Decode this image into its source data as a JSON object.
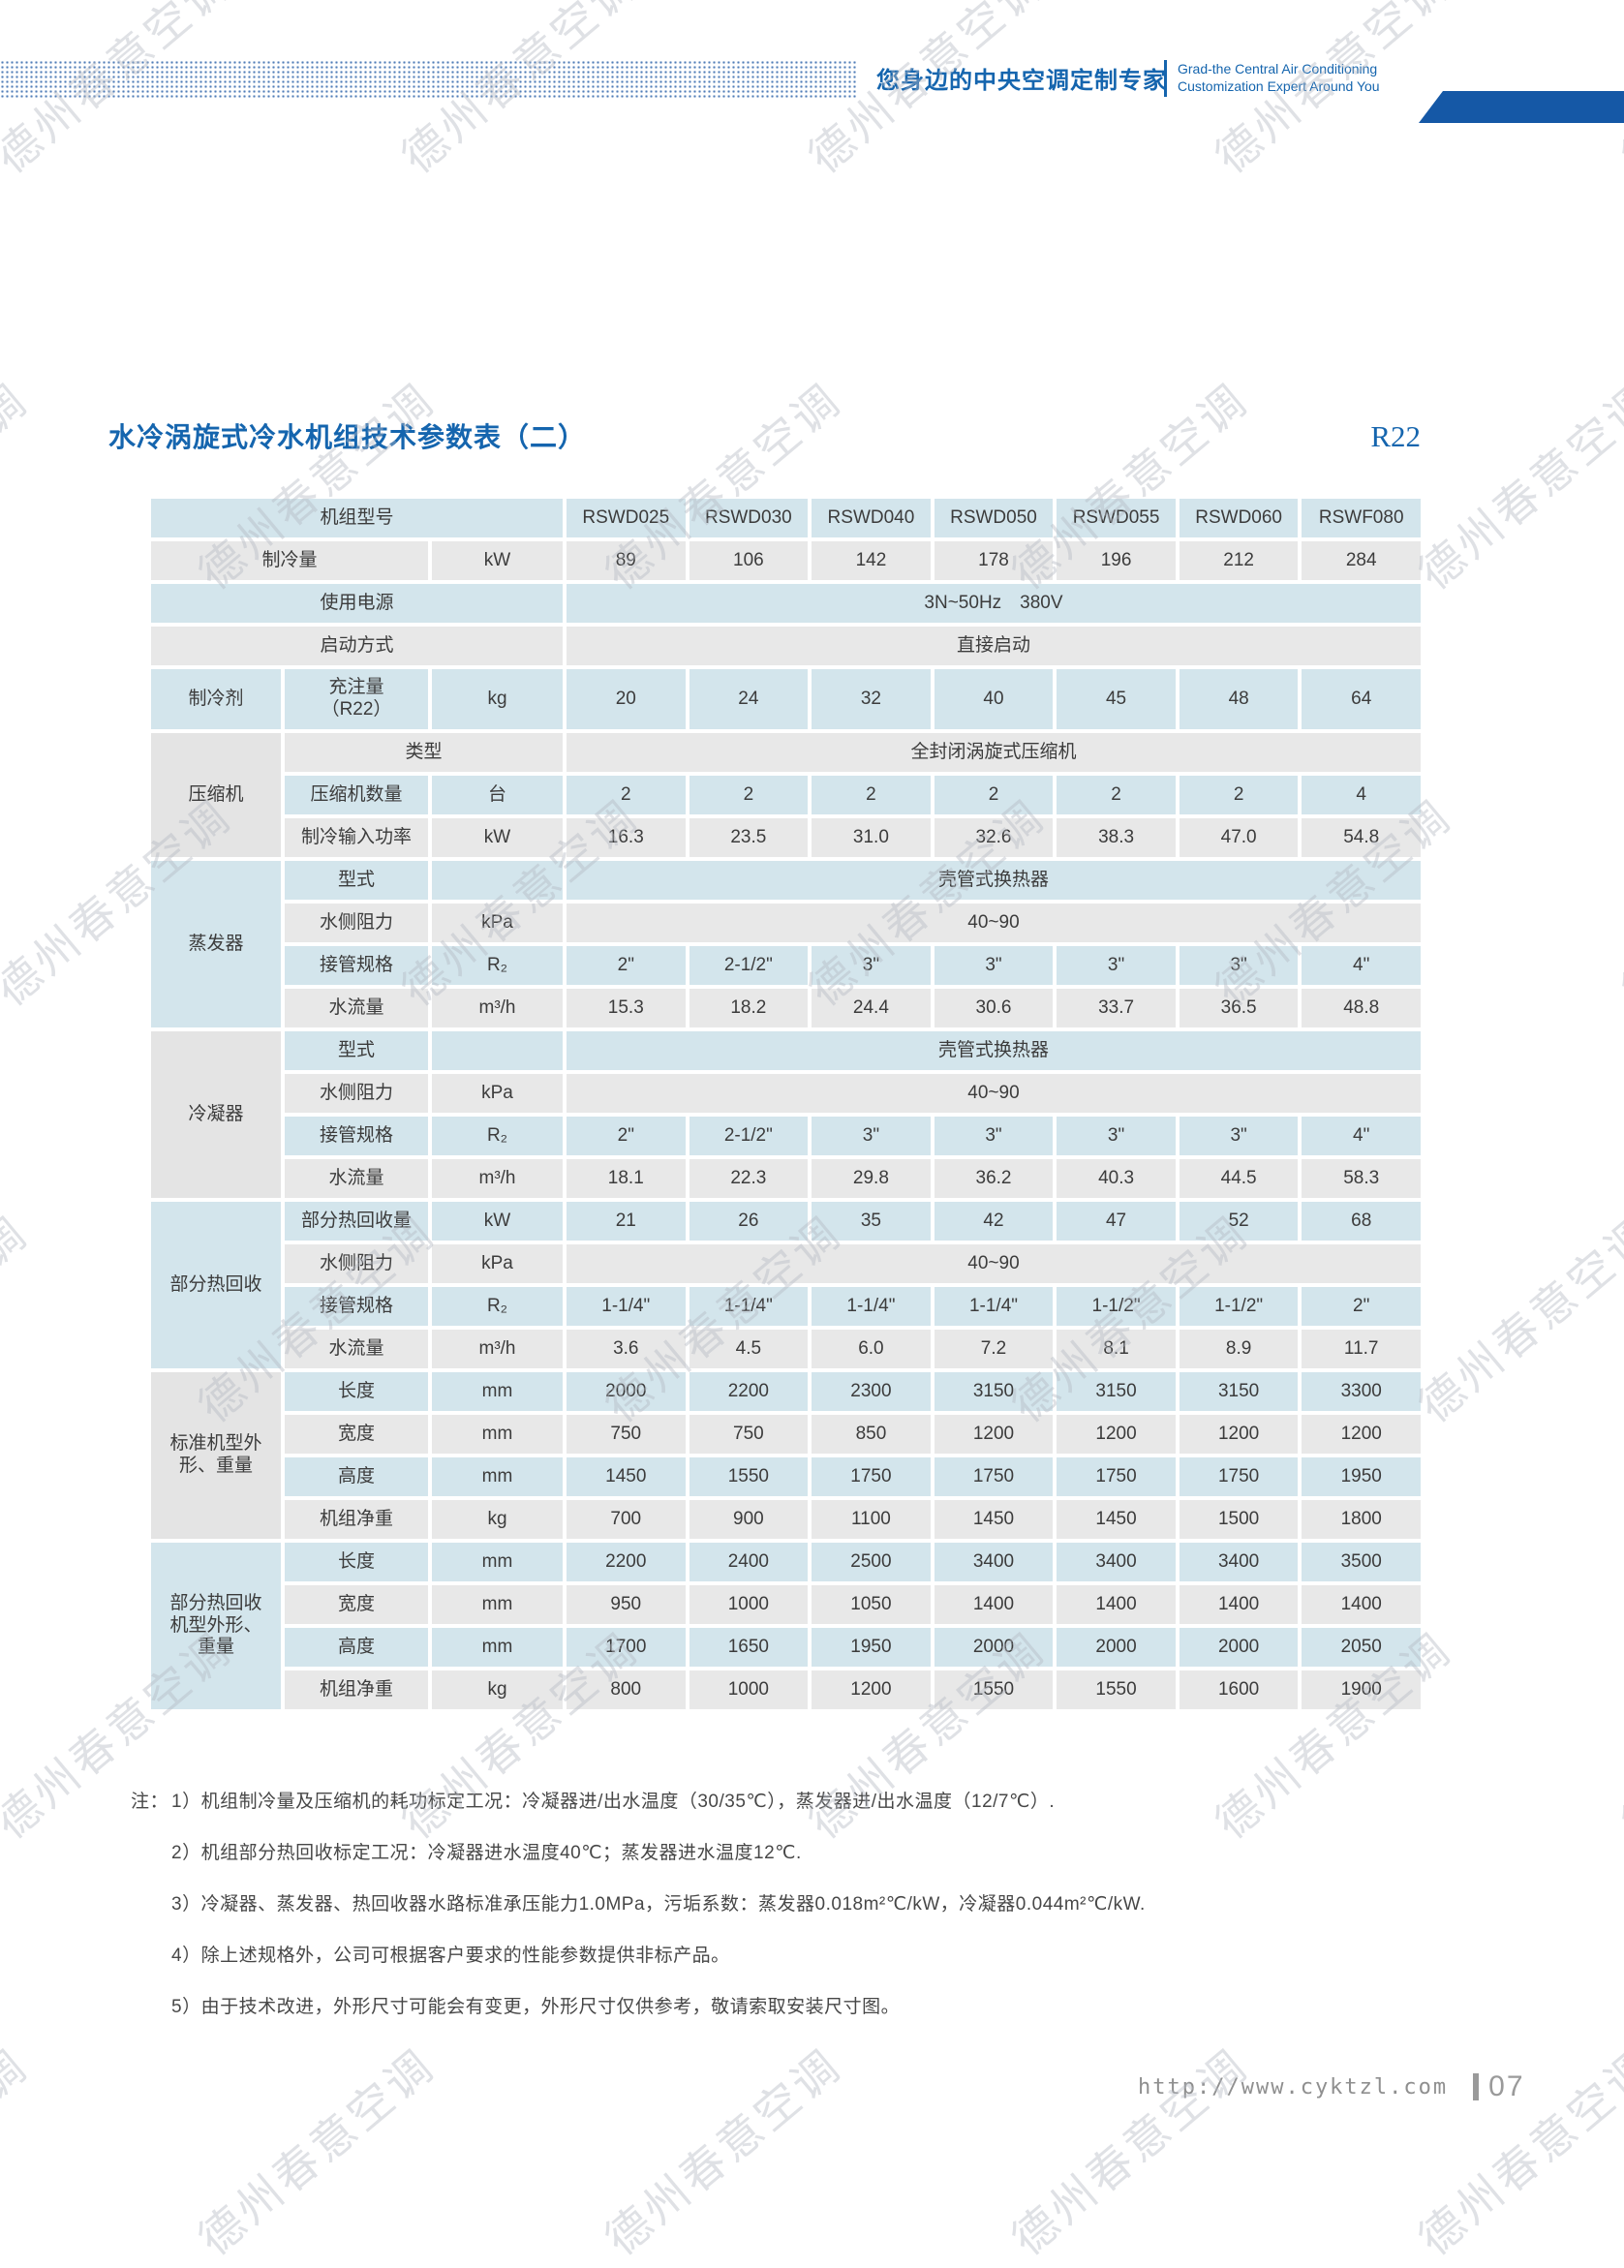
{
  "header": {
    "slogan_cn": "您身边的中央空调定制专家",
    "slogan_en": [
      "Grad-the Central Air Conditioning",
      "Customization Expert Around You"
    ]
  },
  "title": {
    "text": "水冷涡旋式冷水机组技术参数表（二）",
    "badge": "R22"
  },
  "watermark": {
    "text": "德州春意空调"
  },
  "colors": {
    "accent_blue": "#1565ae",
    "band_blue": "#1558a6",
    "row_blue": "#d3e5ec",
    "row_gray": "#e8e8e8",
    "group_gray": "#e4e4e4"
  },
  "table": {
    "rows": [
      {
        "bg": "b",
        "label": "机组型号",
        "labelSpan": "ABC",
        "values": [
          "RSWD025",
          "RSWD030",
          "RSWD040",
          "RSWD050",
          "RSWD055",
          "RSWD060",
          "RSWF080"
        ]
      },
      {
        "bg": "g",
        "label": "制冷量",
        "labelSpan": "AB",
        "unit": "kW",
        "values": [
          "89",
          "106",
          "142",
          "178",
          "196",
          "212",
          "284"
        ]
      },
      {
        "bg": "b",
        "label": "使用电源",
        "labelSpan": "ABC",
        "valueSpan": "3N~50Hz　380V"
      },
      {
        "bg": "g",
        "label": "启动方式",
        "labelSpan": "ABC",
        "valueSpan": "直接启动"
      },
      {
        "bg": "b",
        "tall": true,
        "group": {
          "text": "制冷剂",
          "span": 1,
          "bg": "b"
        },
        "label": "充注量\n（R22）",
        "unit": "kg",
        "values": [
          "20",
          "24",
          "32",
          "40",
          "45",
          "48",
          "64"
        ]
      },
      {
        "bg": "g",
        "group": {
          "text": "压缩机",
          "span": 3,
          "bg": "g"
        },
        "label": "类型",
        "labelSpan": "BC",
        "valueSpan": "全封闭涡旋式压缩机"
      },
      {
        "bg": "b",
        "label": "压缩机数量",
        "unit": "台",
        "values": [
          "2",
          "2",
          "2",
          "2",
          "2",
          "2",
          "4"
        ]
      },
      {
        "bg": "g",
        "label": "制冷输入功率",
        "unit": "kW",
        "values": [
          "16.3",
          "23.5",
          "31.0",
          "32.6",
          "38.3",
          "47.0",
          "54.8"
        ]
      },
      {
        "bg": "b",
        "group": {
          "text": "蒸发器",
          "span": 4,
          "bg": "b"
        },
        "label": "型式",
        "unit": "",
        "valueSpan": "壳管式换热器"
      },
      {
        "bg": "g",
        "label": "水侧阻力",
        "unit": "kPa",
        "valueSpan": "40~90"
      },
      {
        "bg": "b",
        "label": "接管规格",
        "unit": "R₂",
        "values": [
          "2\"",
          "2-1/2\"",
          "3\"",
          "3\"",
          "3\"",
          "3\"",
          "4\""
        ]
      },
      {
        "bg": "g",
        "label": "水流量",
        "unit": "m³/h",
        "values": [
          "15.3",
          "18.2",
          "24.4",
          "30.6",
          "33.7",
          "36.5",
          "48.8"
        ]
      },
      {
        "bg": "b",
        "group": {
          "text": "冷凝器",
          "span": 4,
          "bg": "g"
        },
        "label": "型式",
        "unit": "",
        "valueSpan": "壳管式换热器"
      },
      {
        "bg": "g",
        "label": "水侧阻力",
        "unit": "kPa",
        "valueSpan": "40~90"
      },
      {
        "bg": "b",
        "label": "接管规格",
        "unit": "R₂",
        "values": [
          "2\"",
          "2-1/2\"",
          "3\"",
          "3\"",
          "3\"",
          "3\"",
          "4\""
        ]
      },
      {
        "bg": "g",
        "label": "水流量",
        "unit": "m³/h",
        "values": [
          "18.1",
          "22.3",
          "29.8",
          "36.2",
          "40.3",
          "44.5",
          "58.3"
        ]
      },
      {
        "bg": "b",
        "group": {
          "text": "部分热回收",
          "span": 4,
          "bg": "b"
        },
        "label": "部分热回收量",
        "unit": "kW",
        "values": [
          "21",
          "26",
          "35",
          "42",
          "47",
          "52",
          "68"
        ]
      },
      {
        "bg": "g",
        "label": "水侧阻力",
        "unit": "kPa",
        "valueSpan": "40~90"
      },
      {
        "bg": "b",
        "label": "接管规格",
        "unit": "R₂",
        "values": [
          "1-1/4\"",
          "1-1/4\"",
          "1-1/4\"",
          "1-1/4\"",
          "1-1/2\"",
          "1-1/2\"",
          "2\""
        ]
      },
      {
        "bg": "g",
        "label": "水流量",
        "unit": "m³/h",
        "values": [
          "3.6",
          "4.5",
          "6.0",
          "7.2",
          "8.1",
          "8.9",
          "11.7"
        ]
      },
      {
        "bg": "b",
        "group": {
          "text": "标准机型外\n形、重量",
          "span": 4,
          "bg": "g"
        },
        "label": "长度",
        "unit": "mm",
        "values": [
          "2000",
          "2200",
          "2300",
          "3150",
          "3150",
          "3150",
          "3300"
        ]
      },
      {
        "bg": "g",
        "label": "宽度",
        "unit": "mm",
        "values": [
          "750",
          "750",
          "850",
          "1200",
          "1200",
          "1200",
          "1200"
        ]
      },
      {
        "bg": "b",
        "label": "高度",
        "unit": "mm",
        "values": [
          "1450",
          "1550",
          "1750",
          "1750",
          "1750",
          "1750",
          "1950"
        ]
      },
      {
        "bg": "g",
        "label": "机组净重",
        "unit": "kg",
        "values": [
          "700",
          "900",
          "1100",
          "1450",
          "1450",
          "1500",
          "1800"
        ]
      },
      {
        "bg": "b",
        "group": {
          "text": "部分热回收\n机型外形、\n重量",
          "span": 4,
          "bg": "b"
        },
        "label": "长度",
        "unit": "mm",
        "values": [
          "2200",
          "2400",
          "2500",
          "3400",
          "3400",
          "3400",
          "3500"
        ]
      },
      {
        "bg": "g",
        "label": "宽度",
        "unit": "mm",
        "values": [
          "950",
          "1000",
          "1050",
          "1400",
          "1400",
          "1400",
          "1400"
        ]
      },
      {
        "bg": "b",
        "label": "高度",
        "unit": "mm",
        "values": [
          "1700",
          "1650",
          "1950",
          "2000",
          "2000",
          "2000",
          "2050"
        ]
      },
      {
        "bg": "g",
        "label": "机组净重",
        "unit": "kg",
        "values": [
          "800",
          "1000",
          "1200",
          "1550",
          "1550",
          "1600",
          "1900"
        ]
      }
    ]
  },
  "notes": {
    "prefix": "注：",
    "items": [
      "1）机组制冷量及压缩机的耗功标定工况：冷凝器进/出水温度（30/35℃），蒸发器进/出水温度（12/7℃）.",
      "2）机组部分热回收标定工况：冷凝器进水温度40℃；蒸发器进水温度12℃.",
      "3）冷凝器、蒸发器、热回收器水路标准承压能力1.0MPa，污垢系数：蒸发器0.018m²℃/kW，冷凝器0.044m²℃/kW.",
      "4）除上述规格外，公司可根据客户要求的性能参数提供非标产品。",
      "5）由于技术改进，外形尺寸可能会有变更，外形尺寸仅供参考，敬请索取安装尺寸图。"
    ]
  },
  "footer": {
    "url": "http://www.cyktzl.com",
    "page_no": "07"
  }
}
